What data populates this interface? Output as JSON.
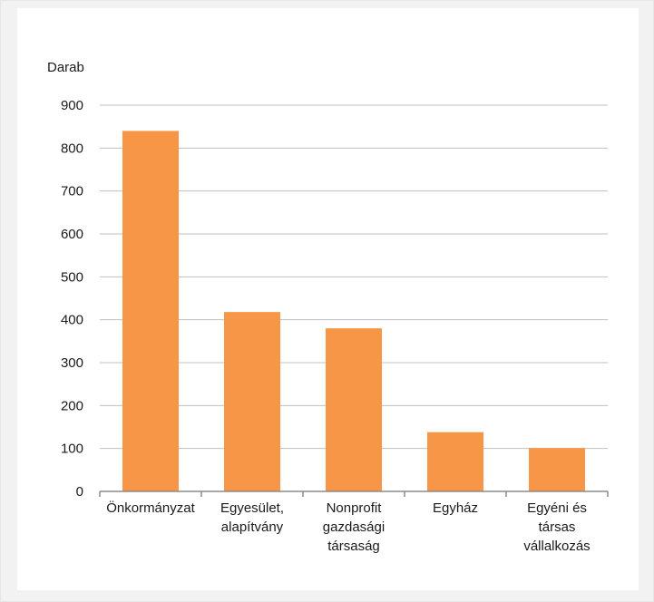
{
  "chart_data": {
    "type": "bar",
    "ylabel": "Darab",
    "ylim": [
      0,
      900
    ],
    "yticks": [
      0,
      100,
      200,
      300,
      400,
      500,
      600,
      700,
      800,
      900
    ],
    "categories": [
      [
        "Önkormányzat"
      ],
      [
        "Egyesület,",
        "alapítvány"
      ],
      [
        "Nonprofit",
        "gazdasági",
        "társaság"
      ],
      [
        "Egyház"
      ],
      [
        "Egyéni és",
        "társas",
        "vállalkozás"
      ]
    ],
    "values": [
      840,
      418,
      380,
      138,
      101
    ],
    "grid": true,
    "colors": {
      "bar": "#f79646",
      "grid": "#bfbfbf",
      "axis": "#8c8c8c",
      "background": "#f2f2f2"
    }
  }
}
